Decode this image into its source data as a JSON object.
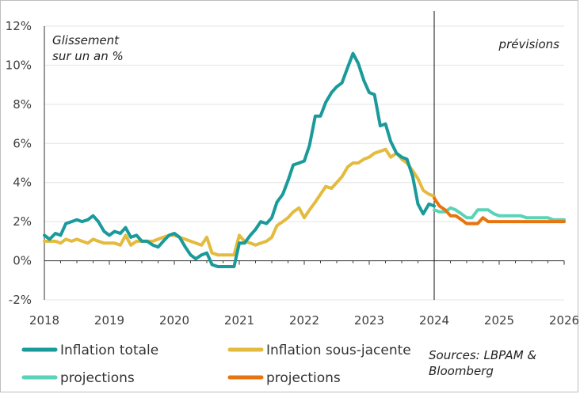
{
  "chart_data": {
    "type": "line",
    "yunit_label": [
      "Glissement",
      "sur un an %"
    ],
    "forecast_label": "prévisions",
    "forecast_start": 2024.0,
    "xlim": [
      2018.0,
      2026.0
    ],
    "ylim": [
      -2,
      12
    ],
    "yticks": [
      -2,
      0,
      2,
      4,
      6,
      8,
      10,
      12
    ],
    "ytick_labels": [
      "-2%",
      "0%",
      "2%",
      "4%",
      "6%",
      "8%",
      "10%",
      "12%"
    ],
    "xticks": [
      2018,
      2019,
      2020,
      2021,
      2022,
      2023,
      2024,
      2025,
      2026
    ],
    "xtick_labels": [
      "2018",
      "2019",
      "2020",
      "2021",
      "2022",
      "2023",
      "2024",
      "2025",
      "2026"
    ],
    "series": [
      {
        "name": "Inflation totale",
        "color": "#1a9a9a",
        "x": [
          2018.0,
          2018.08,
          2018.17,
          2018.25,
          2018.33,
          2018.42,
          2018.5,
          2018.58,
          2018.67,
          2018.75,
          2018.83,
          2018.92,
          2019.0,
          2019.08,
          2019.17,
          2019.25,
          2019.33,
          2019.42,
          2019.5,
          2019.58,
          2019.67,
          2019.75,
          2019.83,
          2019.92,
          2020.0,
          2020.08,
          2020.17,
          2020.25,
          2020.33,
          2020.42,
          2020.5,
          2020.58,
          2020.67,
          2020.75,
          2020.83,
          2020.92,
          2021.0,
          2021.08,
          2021.17,
          2021.25,
          2021.33,
          2021.42,
          2021.5,
          2021.58,
          2021.67,
          2021.75,
          2021.83,
          2021.92,
          2022.0,
          2022.08,
          2022.17,
          2022.25,
          2022.33,
          2022.42,
          2022.5,
          2022.58,
          2022.67,
          2022.75,
          2022.83,
          2022.92,
          2023.0,
          2023.08,
          2023.17,
          2023.25,
          2023.33,
          2023.42,
          2023.5,
          2023.58,
          2023.67,
          2023.75,
          2023.83,
          2023.92,
          2024.0
        ],
        "values": [
          1.3,
          1.1,
          1.4,
          1.3,
          1.9,
          2.0,
          2.1,
          2.0,
          2.1,
          2.3,
          2.0,
          1.5,
          1.3,
          1.5,
          1.4,
          1.7,
          1.2,
          1.3,
          1.0,
          1.0,
          0.8,
          0.7,
          1.0,
          1.3,
          1.4,
          1.2,
          0.7,
          0.3,
          0.1,
          0.3,
          0.4,
          -0.2,
          -0.3,
          -0.3,
          -0.3,
          -0.3,
          0.9,
          0.9,
          1.3,
          1.6,
          2.0,
          1.9,
          2.2,
          3.0,
          3.4,
          4.1,
          4.9,
          5.0,
          5.1,
          5.9,
          7.4,
          7.4,
          8.1,
          8.6,
          8.9,
          9.1,
          9.9,
          10.6,
          10.1,
          9.2,
          8.6,
          8.5,
          6.9,
          7.0,
          6.1,
          5.5,
          5.3,
          5.2,
          4.3,
          2.9,
          2.4,
          2.9,
          2.8
        ]
      },
      {
        "name": "Inflation sous-jacente",
        "color": "#e3bb3e",
        "x": [
          2018.0,
          2018.08,
          2018.17,
          2018.25,
          2018.33,
          2018.42,
          2018.5,
          2018.58,
          2018.67,
          2018.75,
          2018.83,
          2018.92,
          2019.0,
          2019.08,
          2019.17,
          2019.25,
          2019.33,
          2019.42,
          2019.5,
          2019.58,
          2019.67,
          2019.75,
          2019.83,
          2019.92,
          2020.0,
          2020.08,
          2020.17,
          2020.25,
          2020.33,
          2020.42,
          2020.5,
          2020.58,
          2020.67,
          2020.75,
          2020.83,
          2020.92,
          2021.0,
          2021.08,
          2021.17,
          2021.25,
          2021.33,
          2021.42,
          2021.5,
          2021.58,
          2021.67,
          2021.75,
          2021.83,
          2021.92,
          2022.0,
          2022.08,
          2022.17,
          2022.25,
          2022.33,
          2022.42,
          2022.5,
          2022.58,
          2022.67,
          2022.75,
          2022.83,
          2022.92,
          2023.0,
          2023.08,
          2023.17,
          2023.25,
          2023.33,
          2023.42,
          2023.5,
          2023.58,
          2023.67,
          2023.75,
          2023.83,
          2023.92,
          2024.0
        ],
        "values": [
          1.0,
          1.0,
          1.0,
          0.9,
          1.1,
          1.0,
          1.1,
          1.0,
          0.9,
          1.1,
          1.0,
          0.9,
          0.9,
          0.9,
          0.8,
          1.3,
          0.8,
          1.0,
          1.0,
          1.0,
          1.0,
          1.1,
          1.2,
          1.3,
          1.3,
          1.2,
          1.1,
          1.0,
          0.9,
          0.8,
          1.2,
          0.4,
          0.3,
          0.3,
          0.3,
          0.3,
          1.3,
          1.0,
          0.9,
          0.8,
          0.9,
          1.0,
          1.2,
          1.8,
          2.0,
          2.2,
          2.5,
          2.7,
          2.2,
          2.6,
          3.0,
          3.4,
          3.8,
          3.7,
          4.0,
          4.3,
          4.8,
          5.0,
          5.0,
          5.2,
          5.3,
          5.5,
          5.6,
          5.7,
          5.3,
          5.5,
          5.2,
          5.0,
          4.6,
          4.2,
          3.6,
          3.4,
          3.3
        ]
      },
      {
        "name": "projections",
        "color": "#5ad3b8",
        "x": [
          2024.0,
          2024.08,
          2024.17,
          2024.25,
          2024.33,
          2024.42,
          2024.5,
          2024.58,
          2024.67,
          2024.75,
          2024.83,
          2024.92,
          2025.0,
          2025.08,
          2025.17,
          2025.25,
          2025.33,
          2025.42,
          2025.5,
          2025.58,
          2025.67,
          2025.75,
          2025.83,
          2025.92,
          2026.0
        ],
        "values": [
          2.6,
          2.5,
          2.5,
          2.7,
          2.6,
          2.4,
          2.2,
          2.2,
          2.6,
          2.6,
          2.6,
          2.4,
          2.3,
          2.3,
          2.3,
          2.3,
          2.3,
          2.2,
          2.2,
          2.2,
          2.2,
          2.2,
          2.1,
          2.1,
          2.1
        ]
      },
      {
        "name": "projections",
        "color": "#e8740f",
        "x": [
          2024.0,
          2024.08,
          2024.17,
          2024.25,
          2024.33,
          2024.42,
          2024.5,
          2024.58,
          2024.67,
          2024.75,
          2024.83,
          2024.92,
          2025.0,
          2025.08,
          2025.17,
          2025.25,
          2025.33,
          2025.42,
          2025.5,
          2025.58,
          2025.67,
          2025.75,
          2025.83,
          2025.92,
          2026.0
        ],
        "values": [
          3.2,
          2.8,
          2.6,
          2.3,
          2.3,
          2.1,
          1.9,
          1.9,
          1.9,
          2.2,
          2.0,
          2.0,
          2.0,
          2.0,
          2.0,
          2.0,
          2.0,
          2.0,
          2.0,
          2.0,
          2.0,
          2.0,
          2.0,
          2.0,
          2.0
        ]
      }
    ],
    "source_note": [
      "Sources: LBPAM &",
      "Bloomberg"
    ]
  }
}
